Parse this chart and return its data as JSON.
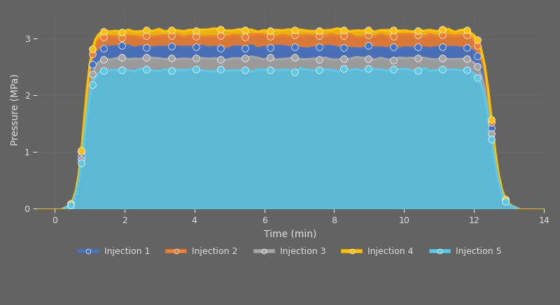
{
  "title": "",
  "xlabel": "Time (min)",
  "ylabel": "Pressure (MPa)",
  "ylim": [
    0,
    3.5
  ],
  "xlim": [
    -0.5,
    14
  ],
  "yticks": [
    0,
    1,
    2,
    3
  ],
  "xticks": [
    0,
    2,
    4,
    6,
    8,
    10,
    12,
    14
  ],
  "bg_color": "#636363",
  "plot_bg_color": "#636363",
  "fig_bg_color": "#636363",
  "text_color": "#e0e0e0",
  "profiles": [
    {
      "flat_y": 2.85,
      "color": "#4472C4",
      "label": "Injection 1",
      "x_start": 0.3,
      "flat_start": 1.4,
      "flat_end": 11.8,
      "x_end": 13.2
    },
    {
      "flat_y": 3.05,
      "color": "#ED7D31",
      "label": "Injection 2",
      "x_start": 0.3,
      "flat_start": 1.4,
      "flat_end": 11.8,
      "x_end": 13.2
    },
    {
      "flat_y": 2.65,
      "color": "#A5A5A5",
      "label": "Injection 3",
      "x_start": 0.3,
      "flat_start": 1.4,
      "flat_end": 11.8,
      "x_end": 13.2
    },
    {
      "flat_y": 3.15,
      "color": "#FFC000",
      "label": "Injection 4",
      "x_start": 0.3,
      "flat_start": 1.4,
      "flat_end": 11.8,
      "x_end": 13.2
    },
    {
      "flat_y": 2.45,
      "color": "#5BC8E8",
      "label": "Injection 5",
      "x_start": 0.3,
      "flat_start": 1.4,
      "flat_end": 11.8,
      "x_end": 13.2
    }
  ],
  "legend_colors": [
    "#4472C4",
    "#ED7D31",
    "#A5A5A5",
    "#FFC000",
    "#5BC8E8"
  ],
  "legend_labels": [
    "Injection 1",
    "Injection 2",
    "Injection 3",
    "Injection 4",
    "Injection 5"
  ],
  "marker_size": 7,
  "line_width": 2.5
}
